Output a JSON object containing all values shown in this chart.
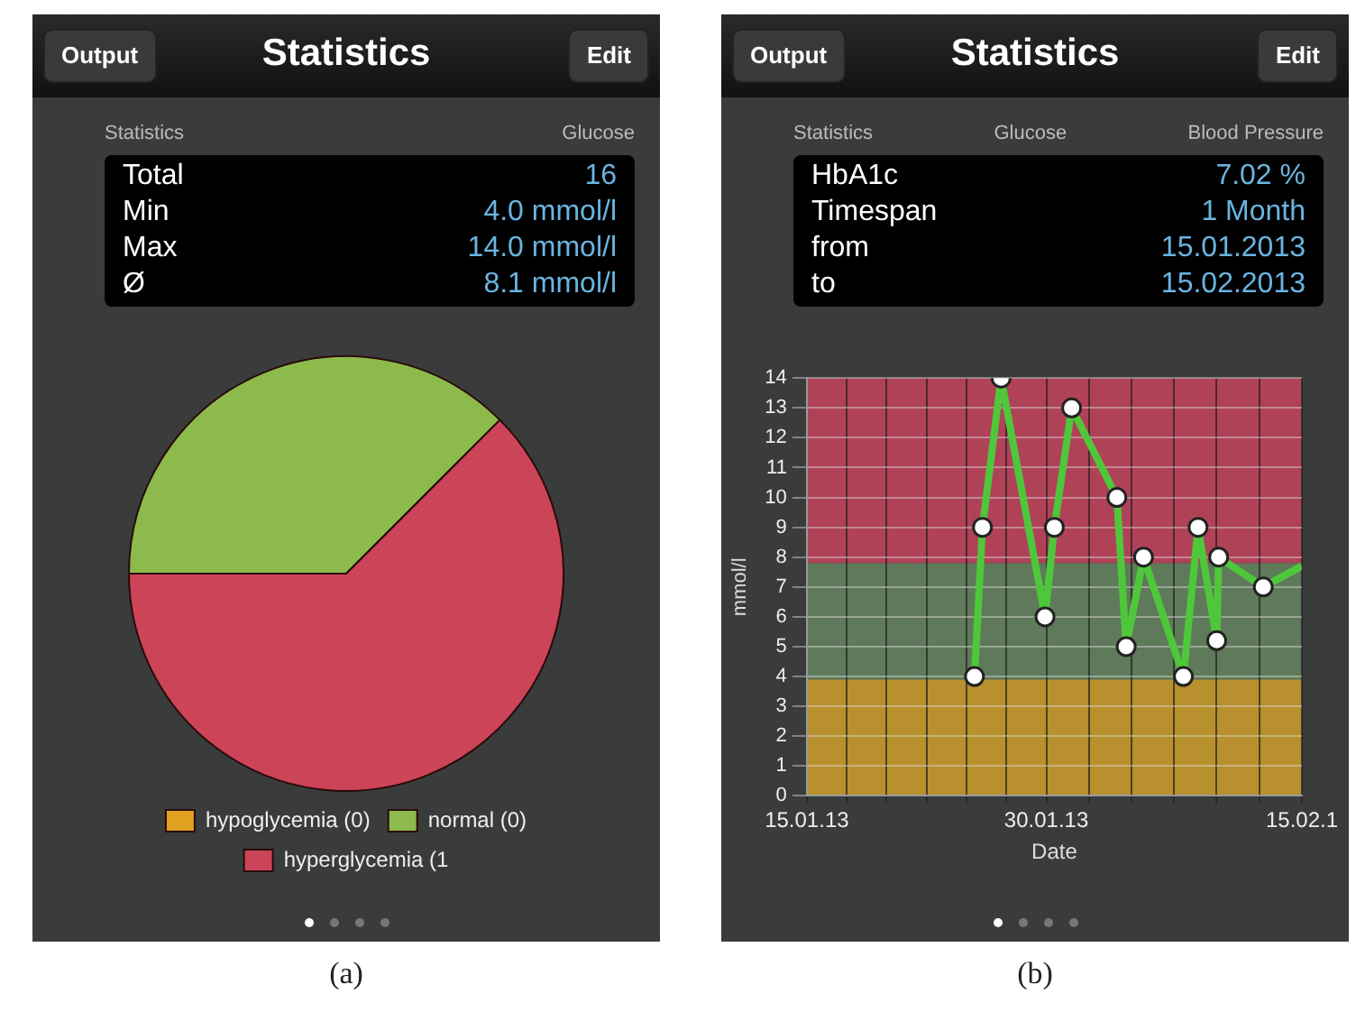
{
  "chart_data": [
    {
      "type": "pie",
      "title": "Statistics",
      "categories": [
        "hypoglycemia (0)",
        "normal (0)",
        "hyperglycemia (1"
      ],
      "values": [
        0,
        37.5,
        62.5
      ],
      "colors": [
        "#e0a020",
        "#8cba4c",
        "#cc4458"
      ],
      "legend": "bottom",
      "annotations": [
        "Output",
        "Edit",
        "Statistics",
        "Glucose",
        "Total",
        "16",
        "Min",
        "4.0 mmol/l",
        "Max",
        "14.0 mmol/l",
        "Ø",
        "8.1 mmol/l",
        "(a)"
      ]
    },
    {
      "type": "line",
      "title": "Statistics",
      "xlabel": "Date",
      "ylabel": "mmol/l",
      "legend": false,
      "grid": true,
      "marker": "circle",
      "line_style": "solid",
      "xlim": [
        "2013-01-15",
        "2013-02-15"
      ],
      "xticks": [
        {
          "value": "2013-01-15",
          "label": "15.01.13"
        },
        {
          "value": "2013-01-17T12:00",
          "label": null
        },
        {
          "value": "2013-01-20",
          "label": null
        },
        {
          "value": "2013-01-22T12:00",
          "label": null
        },
        {
          "value": "2013-01-25",
          "label": null
        },
        {
          "value": "2013-01-27T12:00",
          "label": null
        },
        {
          "value": "2013-01-30",
          "label": "30.01.13"
        },
        {
          "value": "2013-02-01T16:00",
          "label": null
        },
        {
          "value": "2013-02-04T08:00",
          "label": null
        },
        {
          "value": "2013-02-07",
          "label": null
        },
        {
          "value": "2013-02-09T16:00",
          "label": null
        },
        {
          "value": "2013-02-12T08:00",
          "label": null
        },
        {
          "value": "2013-02-15",
          "label": "15.02.1"
        }
      ],
      "ylim": [
        0,
        14
      ],
      "yticks": [
        0,
        1,
        2,
        3,
        4,
        5,
        6,
        7,
        8,
        9,
        10,
        11,
        12,
        13,
        14
      ],
      "bands": [
        {
          "axis": "y",
          "from": 0,
          "to": 3.9,
          "color": "#b8902e"
        },
        {
          "axis": "y",
          "from": 3.9,
          "to": 7.8,
          "color": "#5f7a5a"
        },
        {
          "axis": "y",
          "from": 7.8,
          "to": 14,
          "color": "#b04258"
        }
      ],
      "series": [
        {
          "color": "#4ec83a",
          "x": [
            "2013-01-25T12:00",
            "2013-01-26",
            "2013-01-27T04:00",
            "2013-01-29T22:00",
            "2013-01-30T12:00",
            "2013-01-31T14:00",
            "2013-02-03T10:00",
            "2013-02-04",
            "2013-02-05T02:00",
            "2013-02-07T14:00",
            "2013-02-08T12:00",
            "2013-02-09T16:00",
            "2013-02-09T19:00",
            "2013-02-12T14:00"
          ],
          "values": [
            4,
            9,
            14,
            6,
            9,
            13,
            10,
            5,
            8,
            4,
            9,
            5.2,
            8,
            7
          ]
        },
        {
          "color": "#4ec83a",
          "marker": "none",
          "x": [
            "2013-02-12T14:00",
            "2013-02-15"
          ],
          "values": [
            7,
            7.7
          ]
        }
      ],
      "annotations": [
        "Output",
        "Edit",
        "Statistics",
        "Glucose",
        "Blood Pressure",
        "HbA1c",
        "7.02 %",
        "Timespan",
        "1 Month",
        "from",
        "15.01.2013",
        "to",
        "15.02.2013",
        "(b)"
      ]
    }
  ]
}
